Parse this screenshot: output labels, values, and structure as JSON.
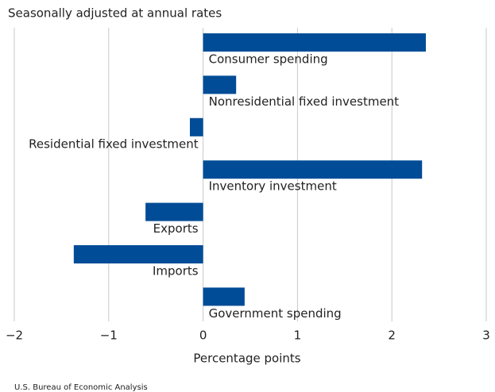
{
  "chart_data": {
    "type": "bar",
    "orientation": "horizontal",
    "subtitle": "Seasonally adjusted at annual rates",
    "x_label": "Percentage points",
    "source": "U.S. Bureau of Economic Analysis",
    "categories": [
      "Consumer spending",
      "Nonresidential fixed investment",
      "Residential fixed investment",
      "Inventory investment",
      "Exports",
      "Imports",
      "Government spending"
    ],
    "values": [
      2.36,
      0.35,
      -0.14,
      2.32,
      -0.61,
      -1.37,
      0.44
    ],
    "color": "#004c97",
    "xlim": [
      -2,
      3
    ],
    "xticks": [
      {
        "value": -2,
        "label": "−2"
      },
      {
        "value": -1,
        "label": "−1"
      },
      0,
      1,
      2,
      3
    ],
    "grid": true
  }
}
